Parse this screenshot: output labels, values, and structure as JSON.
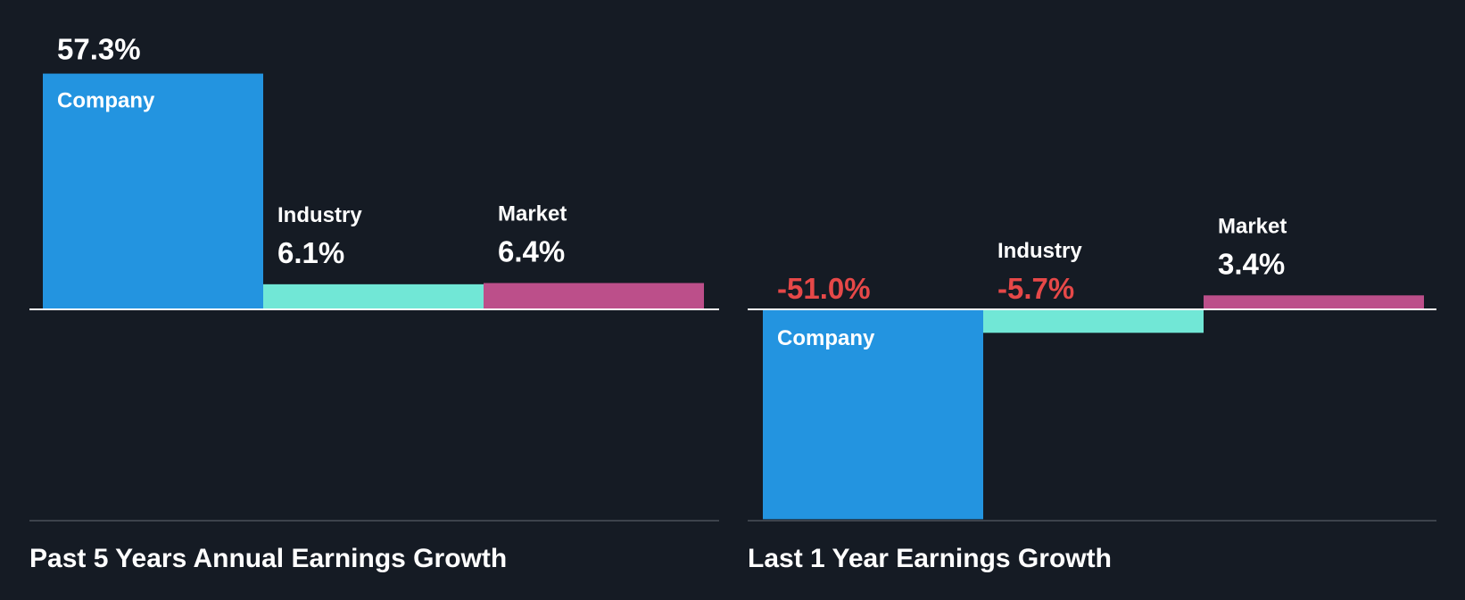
{
  "colors": {
    "background": "#151b24",
    "company": "#2394e0",
    "industry": "#71e7d6",
    "market": "#bc4f8a",
    "text": "#ffffff",
    "negative_text": "#e64848",
    "zero_line": "#ffffff",
    "baseline": "#3d434c"
  },
  "chart_data": [
    {
      "type": "bar",
      "title": "Past 5 Years Annual Earnings Growth",
      "categories": [
        "Company",
        "Industry",
        "Market"
      ],
      "values": [
        57.3,
        6.1,
        6.4
      ],
      "value_labels": [
        "57.3%",
        "6.1%",
        "6.4%"
      ],
      "unit": "%",
      "ylim": [
        -51.0,
        57.3
      ],
      "grid": false,
      "legend": "none"
    },
    {
      "type": "bar",
      "title": "Last 1 Year Earnings Growth",
      "categories": [
        "Company",
        "Industry",
        "Market"
      ],
      "values": [
        -51.0,
        -5.7,
        3.4
      ],
      "value_labels": [
        "-51.0%",
        "-5.7%",
        "3.4%"
      ],
      "unit": "%",
      "ylim": [
        -51.0,
        57.3
      ],
      "grid": false,
      "legend": "none"
    }
  ]
}
